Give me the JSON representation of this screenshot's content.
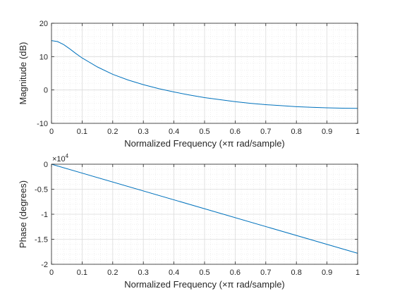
{
  "chart_data": [
    {
      "type": "line",
      "title": "",
      "xlabel": "Normalized Frequency  (×π rad/sample)",
      "ylabel": "Magnitude (dB)",
      "xlim": [
        0,
        1
      ],
      "ylim": [
        -10,
        20
      ],
      "xticks": [
        "0",
        "0.1",
        "0.2",
        "0.3",
        "0.4",
        "0.5",
        "0.6",
        "0.7",
        "0.8",
        "0.9",
        "1"
      ],
      "yticks": [
        "-10",
        "0",
        "10",
        "20"
      ],
      "grid": "major and minor",
      "series": [
        {
          "color": "#0072bd",
          "x": [
            0,
            0.02,
            0.04,
            0.06,
            0.08,
            0.1,
            0.15,
            0.2,
            0.25,
            0.3,
            0.35,
            0.4,
            0.45,
            0.5,
            0.55,
            0.6,
            0.65,
            0.7,
            0.75,
            0.8,
            0.85,
            0.9,
            0.95,
            1.0
          ],
          "y": [
            14.8,
            14.5,
            13.6,
            12.3,
            10.9,
            9.6,
            6.9,
            4.7,
            3.0,
            1.6,
            0.4,
            -0.6,
            -1.5,
            -2.3,
            -2.9,
            -3.5,
            -4.0,
            -4.4,
            -4.7,
            -5.0,
            -5.2,
            -5.35,
            -5.45,
            -5.5
          ]
        }
      ]
    },
    {
      "type": "line",
      "title": "",
      "xlabel": "Normalized Frequency  (×π rad/sample)",
      "ylabel": "Phase (degrees)",
      "exponent_label": "×10",
      "exponent_power": "4",
      "xlim": [
        0,
        1
      ],
      "ylim": [
        -2,
        0
      ],
      "xticks": [
        "0",
        "0.1",
        "0.2",
        "0.3",
        "0.4",
        "0.5",
        "0.6",
        "0.7",
        "0.8",
        "0.9",
        "1"
      ],
      "yticks": [
        "-2",
        "-1.5",
        "-1",
        "-0.5",
        "0"
      ],
      "grid": "major and minor",
      "series": [
        {
          "color": "#0072bd",
          "x": [
            0,
            1
          ],
          "y": [
            0,
            -1.78
          ]
        }
      ]
    }
  ]
}
